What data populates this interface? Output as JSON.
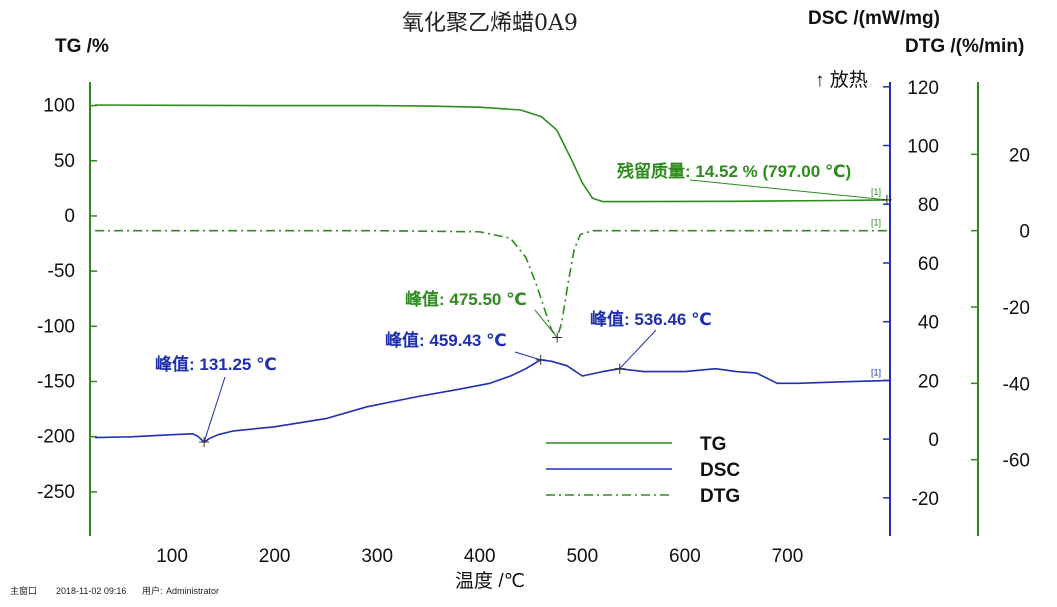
{
  "chart_data": {
    "type": "line",
    "title": "氧化聚乙烯蜡0A9",
    "xlabel": "温度 /℃",
    "xlim": [
      20,
      800
    ],
    "xticks": [
      100,
      200,
      300,
      400,
      500,
      600,
      700
    ],
    "axes": {
      "tg": {
        "label": "TG /%",
        "ylim": [
          -290,
          125
        ],
        "ticks": [
          100,
          50,
          0,
          -50,
          -100,
          -150,
          -200,
          -250
        ]
      },
      "dsc": {
        "label": "DSC /(mW/mg)",
        "ylim": [
          -33,
          123
        ],
        "ticks": [
          120,
          100,
          80,
          60,
          40,
          20,
          0,
          -20
        ],
        "exo_label": "↑ 放热"
      },
      "dtg": {
        "label": "DTG /(%/min)",
        "ylim": [
          -80,
          40
        ],
        "ticks": [
          20,
          0,
          -20,
          -40,
          -60
        ]
      }
    },
    "series": [
      {
        "name": "TG",
        "axis": "tg",
        "color": "#2e8b1e",
        "style": "solid",
        "points": [
          [
            25,
            100.5
          ],
          [
            100,
            100.3
          ],
          [
            200,
            100
          ],
          [
            300,
            100
          ],
          [
            350,
            99.5
          ],
          [
            400,
            98.5
          ],
          [
            440,
            96
          ],
          [
            460,
            90
          ],
          [
            475,
            78
          ],
          [
            490,
            50
          ],
          [
            500,
            30
          ],
          [
            510,
            16
          ],
          [
            520,
            13
          ],
          [
            550,
            13
          ],
          [
            650,
            13.3
          ],
          [
            750,
            14
          ],
          [
            797,
            14.52
          ]
        ]
      },
      {
        "name": "DSC",
        "axis": "dsc",
        "color": "#1f2fb0",
        "style": "solid",
        "points": [
          [
            25,
            0.5
          ],
          [
            60,
            0.8
          ],
          [
            100,
            1.5
          ],
          [
            120,
            1.8
          ],
          [
            125,
            1
          ],
          [
            131.25,
            -1
          ],
          [
            137,
            0.3
          ],
          [
            145,
            1.5
          ],
          [
            160,
            2.8
          ],
          [
            200,
            4.2
          ],
          [
            250,
            7
          ],
          [
            290,
            11
          ],
          [
            340,
            14.5
          ],
          [
            380,
            17
          ],
          [
            410,
            19
          ],
          [
            430,
            21.5
          ],
          [
            445,
            24
          ],
          [
            459.43,
            27
          ],
          [
            470,
            26.5
          ],
          [
            485,
            25
          ],
          [
            500,
            21.5
          ],
          [
            520,
            23
          ],
          [
            536.46,
            24
          ],
          [
            560,
            23
          ],
          [
            600,
            23
          ],
          [
            630,
            24
          ],
          [
            650,
            23
          ],
          [
            670,
            22.5
          ],
          [
            690,
            19
          ],
          [
            710,
            19
          ],
          [
            750,
            19.5
          ],
          [
            800,
            20
          ]
        ]
      },
      {
        "name": "DTG",
        "axis": "dtg",
        "color": "#2e8b1e",
        "style": "dashdot",
        "points": [
          [
            25,
            0
          ],
          [
            100,
            0
          ],
          [
            200,
            0
          ],
          [
            300,
            0
          ],
          [
            400,
            -0.3
          ],
          [
            430,
            -2
          ],
          [
            445,
            -7
          ],
          [
            455,
            -14
          ],
          [
            465,
            -22
          ],
          [
            470,
            -26
          ],
          [
            475.5,
            -28
          ],
          [
            480,
            -24
          ],
          [
            486,
            -14
          ],
          [
            492,
            -5
          ],
          [
            498,
            -1
          ],
          [
            510,
            0
          ],
          [
            600,
            0
          ],
          [
            700,
            0
          ],
          [
            797,
            0
          ]
        ]
      }
    ],
    "annotations": [
      {
        "text": "残留质量: 14.52 % (797.00 ℃)",
        "series": "TG",
        "x": 797,
        "y": 14.52
      },
      {
        "text": "峰值: 475.50 ℃",
        "series": "DTG",
        "x": 475.5,
        "y": -28
      },
      {
        "text": "峰值: 459.43 ℃",
        "series": "DSC",
        "x": 459.43,
        "y": 27
      },
      {
        "text": "峰值: 536.46 ℃",
        "series": "DSC",
        "x": 536.46,
        "y": 24
      },
      {
        "text": "峰值: 131.25 ℃",
        "series": "DSC",
        "x": 131.25,
        "y": -1
      }
    ],
    "legend": {
      "placement": "bottom-right",
      "entries": [
        "TG",
        "DSC",
        "DTG"
      ]
    },
    "grid": false,
    "series_tag": "[1]"
  },
  "status_bar": {
    "label": "主窗口",
    "datetime": "2018-11-02 09:16",
    "user_label": "用户:",
    "user": "Administrator"
  }
}
